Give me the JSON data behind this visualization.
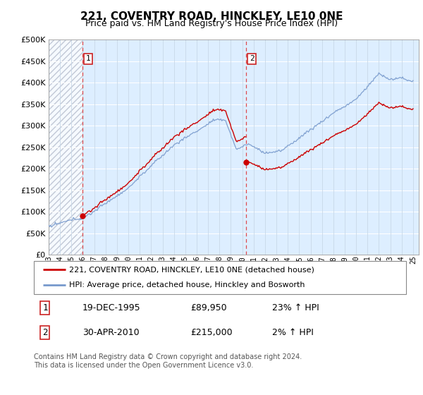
{
  "title": "221, COVENTRY ROAD, HINCKLEY, LE10 0NE",
  "subtitle": "Price paid vs. HM Land Registry's House Price Index (HPI)",
  "ylabel_ticks": [
    "£0",
    "£50K",
    "£100K",
    "£150K",
    "£200K",
    "£250K",
    "£300K",
    "£350K",
    "£400K",
    "£450K",
    "£500K"
  ],
  "ytick_values": [
    0,
    50000,
    100000,
    150000,
    200000,
    250000,
    300000,
    350000,
    400000,
    450000,
    500000
  ],
  "ylim": [
    0,
    500000
  ],
  "xlim_start": 1993.0,
  "xlim_end": 2025.5,
  "sale1_date": 1995.97,
  "sale1_price": 89950,
  "sale1_label": "1",
  "sale2_date": 2010.33,
  "sale2_price": 215000,
  "sale2_label": "2",
  "red_line_color": "#cc0000",
  "blue_line_color": "#7799cc",
  "grid_color_v": "#c8d8e8",
  "grid_color_h": "#ffffff",
  "background_color": "#ddeeff",
  "fig_background": "#ffffff",
  "legend_line1": "221, COVENTRY ROAD, HINCKLEY, LE10 0NE (detached house)",
  "legend_line2": "HPI: Average price, detached house, Hinckley and Bosworth",
  "table_row1": [
    "1",
    "19-DEC-1995",
    "£89,950",
    "23% ↑ HPI"
  ],
  "table_row2": [
    "2",
    "30-APR-2010",
    "£215,000",
    "2% ↑ HPI"
  ],
  "footer": "Contains HM Land Registry data © Crown copyright and database right 2024.\nThis data is licensed under the Open Government Licence v3.0.",
  "xtick_years": [
    1993,
    1994,
    1995,
    1996,
    1997,
    1998,
    1999,
    2000,
    2001,
    2002,
    2003,
    2004,
    2005,
    2006,
    2007,
    2008,
    2009,
    2010,
    2011,
    2012,
    2013,
    2014,
    2015,
    2016,
    2017,
    2018,
    2019,
    2020,
    2021,
    2022,
    2023,
    2024,
    2025
  ],
  "xtick_labels": [
    "93",
    "94",
    "95",
    "96",
    "97",
    "98",
    "99",
    "00",
    "01",
    "02",
    "03",
    "04",
    "05",
    "06",
    "07",
    "08",
    "09",
    "10",
    "11",
    "12",
    "13",
    "14",
    "15",
    "16",
    "17",
    "18",
    "19",
    "20",
    "21",
    "22",
    "23",
    "24",
    "25"
  ]
}
